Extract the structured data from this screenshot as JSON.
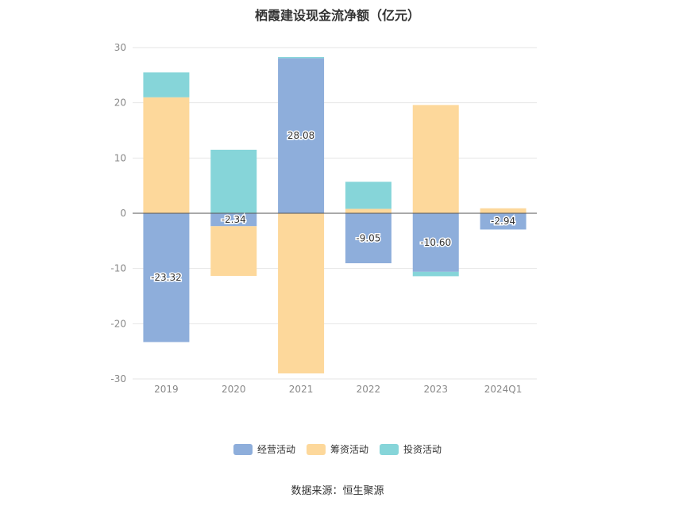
{
  "chart_data": {
    "type": "bar",
    "stacked": true,
    "title": "栖霞建设现金流净额（亿元）",
    "categories": [
      "2019",
      "2020",
      "2021",
      "2022",
      "2023",
      "2024Q1"
    ],
    "series": [
      {
        "name": "经营活动",
        "color": "#8eaedb",
        "values": [
          -23.32,
          -2.34,
          28.08,
          -9.05,
          -10.6,
          -2.94
        ]
      },
      {
        "name": "筹资活动",
        "color": "#fdd89b",
        "values": [
          21.0,
          -9.0,
          -29.0,
          0.8,
          19.6,
          0.9
        ]
      },
      {
        "name": "投资活动",
        "color": "#86d5d9",
        "values": [
          4.5,
          11.5,
          0.2,
          4.9,
          -0.8,
          0.0
        ]
      }
    ],
    "data_labels": [
      "-23.32",
      "-2.34",
      "28.08",
      "-9.05",
      "-10.60",
      "-2.94"
    ],
    "ylim": [
      -30,
      30
    ],
    "yticks": [
      30,
      20,
      10,
      0,
      -10,
      -20,
      -30
    ],
    "grid": true,
    "legend_position": "bottom"
  },
  "source_text": "数据来源：恒生聚源"
}
